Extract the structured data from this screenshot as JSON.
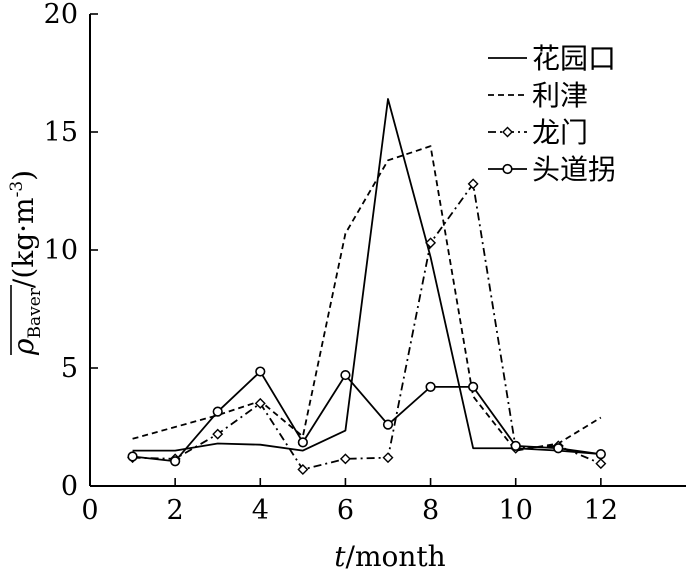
{
  "chart_data": {
    "type": "line",
    "xlabel_var": "t",
    "xlabel_unit": "/month",
    "ylabel_symbol": "ρ",
    "ylabel_subscript": "Baver",
    "ylabel_unit_open": "/(kg·m",
    "ylabel_unit_exp": "-3",
    "ylabel_unit_close": ")",
    "xlim": [
      0,
      14
    ],
    "ylim": [
      0,
      20
    ],
    "xticks": [
      0,
      2,
      4,
      6,
      8,
      10,
      12
    ],
    "yticks": [
      0,
      5,
      10,
      15,
      20
    ],
    "x": [
      1,
      2,
      3,
      4,
      5,
      6,
      7,
      8,
      9,
      10,
      11,
      12
    ],
    "grid": false,
    "legend_position": "top-right",
    "series": [
      {
        "name": "花园口",
        "dash": "solid",
        "marker": "none",
        "values": [
          1.5,
          1.5,
          1.8,
          1.75,
          1.5,
          2.35,
          16.4,
          9.7,
          1.6,
          1.6,
          1.5,
          1.35
        ]
      },
      {
        "name": "利津",
        "dash": "dashed",
        "marker": "none",
        "values": [
          2.0,
          2.5,
          3.0,
          3.6,
          2.1,
          10.7,
          13.8,
          14.4,
          3.8,
          1.5,
          1.8,
          2.9
        ]
      },
      {
        "name": "龙门",
        "dash": "dashdot",
        "marker": "diamond",
        "values": [
          1.2,
          1.15,
          2.2,
          3.5,
          0.7,
          1.15,
          1.2,
          10.3,
          12.8,
          1.6,
          1.7,
          0.95
        ]
      },
      {
        "name": "头道拐",
        "dash": "solid",
        "marker": "circle",
        "values": [
          1.25,
          1.05,
          3.15,
          4.85,
          1.85,
          4.7,
          2.6,
          4.2,
          4.2,
          1.7,
          1.6,
          1.35
        ]
      }
    ]
  }
}
